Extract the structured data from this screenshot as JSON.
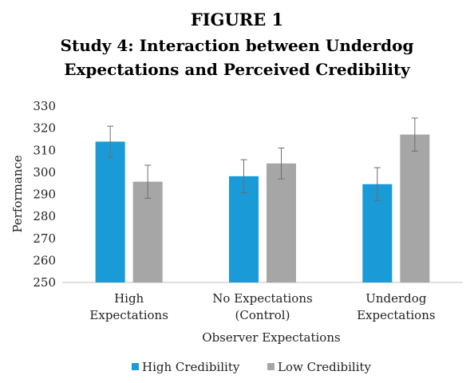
{
  "figure": {
    "label": "FIGURE 1",
    "title_line1": "Study 4: Interaction between Underdog",
    "title_line2": "Expectations and Perceived Credibility"
  },
  "chart_data": {
    "type": "bar",
    "xlabel": "Observer Expectations",
    "ylabel": "Performance",
    "ylim": [
      250,
      330
    ],
    "yticks": [
      250,
      260,
      270,
      280,
      290,
      300,
      310,
      320,
      330
    ],
    "grid": false,
    "legend_position": "bottom",
    "categories": [
      [
        "High",
        "Expectations"
      ],
      [
        "No Expectations",
        "(Control)"
      ],
      [
        "Underdog",
        "Expectations"
      ]
    ],
    "series": [
      {
        "name": "High Credibility",
        "color": "#1a9ad6",
        "values": [
          313.9,
          298.2,
          294.6
        ],
        "error": [
          7,
          7.5,
          7.5
        ]
      },
      {
        "name": "Low Credibility",
        "color": "#a6a6a6",
        "values": [
          295.7,
          304.0,
          317.1
        ],
        "error": [
          7.5,
          7,
          7.5
        ]
      }
    ]
  }
}
